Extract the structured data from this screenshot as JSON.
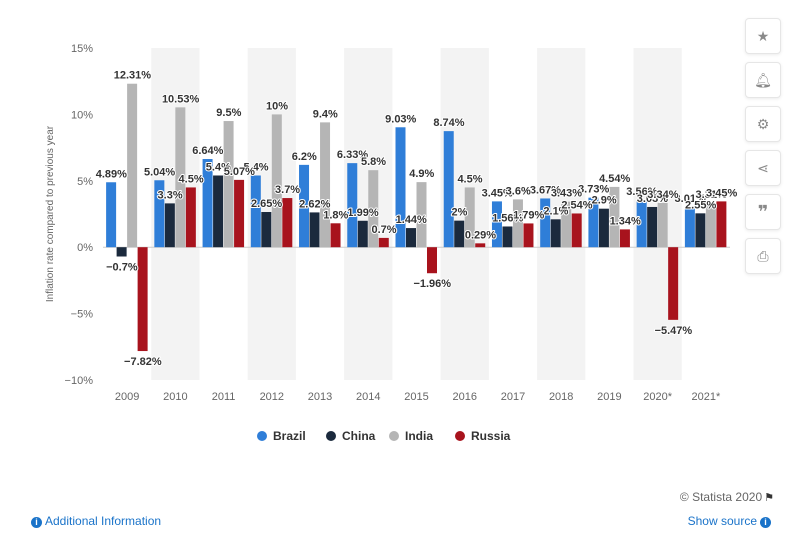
{
  "chart_data": {
    "type": "bar",
    "title": "",
    "xlabel": "",
    "ylabel": "Inflation rate compared to previous year",
    "ylim": [
      -10,
      15
    ],
    "yticks": [
      {
        "value": 15,
        "label": "15%"
      },
      {
        "value": 10,
        "label": "10%"
      },
      {
        "value": 5,
        "label": "5%"
      },
      {
        "value": 0,
        "label": "0%"
      },
      {
        "value": -5,
        "label": "−5%"
      },
      {
        "value": -10,
        "label": "−10%"
      }
    ],
    "categories": [
      "2009",
      "2010",
      "2011",
      "2012",
      "2013",
      "2014",
      "2015",
      "2016",
      "2017",
      "2018",
      "2019",
      "2020*",
      "2021*"
    ],
    "series": [
      {
        "name": "Brazil",
        "color": "#2f7ed8",
        "values": [
          4.89,
          5.04,
          6.64,
          5.4,
          6.2,
          6.33,
          9.03,
          8.74,
          3.45,
          3.67,
          3.73,
          3.56,
          3.01
        ],
        "labels": [
          "4.89%",
          "5.04%",
          "6.64%",
          "5.4%",
          "6.2%",
          "6.33%",
          "9.03%",
          "8.74%",
          "3.45%",
          "3.67%",
          "3.73%",
          "3.56%",
          "3.01%"
        ]
      },
      {
        "name": "China",
        "color": "#1b2a3d",
        "values": [
          -0.7,
          3.3,
          5.4,
          2.65,
          2.62,
          1.99,
          1.44,
          2.0,
          1.56,
          2.1,
          2.9,
          3.03,
          2.55
        ],
        "labels": [
          "−0.7%",
          "3.3%",
          "5.4%",
          "2.65%",
          "2.62%",
          "1.99%",
          "1.44%",
          "2%",
          "1.56%",
          "2.1%",
          "2.9%",
          "3.03%",
          "2.55%"
        ]
      },
      {
        "name": "India",
        "color": "#b5b5b5",
        "values": [
          12.31,
          10.53,
          9.5,
          10.0,
          9.4,
          5.8,
          4.9,
          4.5,
          3.6,
          3.43,
          4.54,
          3.34,
          3.31
        ],
        "labels": [
          "12.31%",
          "10.53%",
          "9.5%",
          "10%",
          "9.4%",
          "5.8%",
          "4.9%",
          "4.5%",
          "3.6%",
          "3.43%",
          "4.54%",
          "3.34%",
          "3.31%"
        ]
      },
      {
        "name": "Russia",
        "color": "#a8131d",
        "values": [
          -7.82,
          4.5,
          5.07,
          3.7,
          1.8,
          0.7,
          -1.96,
          0.29,
          1.79,
          2.54,
          1.34,
          -5.47,
          3.45
        ],
        "labels": [
          "−7.82%",
          "4.5%",
          "5.07%",
          "3.7%",
          "1.8%",
          "0.7%",
          "−1.96%",
          "0.29%",
          "1.79%",
          "2.54%",
          "1.34%",
          "−5.47%",
          "3.45%"
        ]
      }
    ],
    "grid": "alternating column bands",
    "legend_position": "bottom-center"
  },
  "footer": {
    "credit": "© Statista 2020",
    "additional_info": "Additional Information",
    "show_source": "Show source"
  },
  "sidebar": {
    "icons": [
      "star-icon",
      "bell-icon",
      "gear-icon",
      "share-icon",
      "quote-icon",
      "print-icon"
    ]
  }
}
